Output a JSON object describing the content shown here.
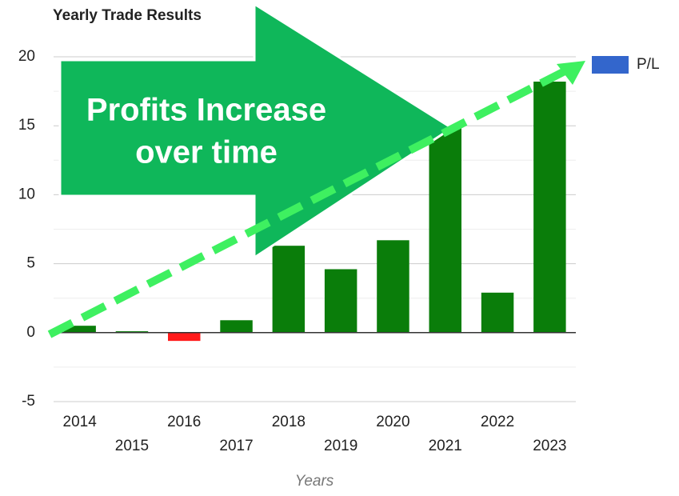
{
  "chart_data": {
    "type": "bar",
    "title": "Yearly Trade Results",
    "x_label": "Years",
    "categories": [
      "2014",
      "2015",
      "2016",
      "2017",
      "2018",
      "2019",
      "2020",
      "2021",
      "2022",
      "2023"
    ],
    "series": [
      {
        "name": "P/L",
        "color": "#3366cc",
        "values": [
          0.5,
          0.1,
          -0.6,
          0.9,
          6.3,
          4.6,
          6.7,
          14.9,
          2.9,
          18.2
        ],
        "bar_colors": [
          "#0a7d0a",
          "#0a7d0a",
          "#ff1a1a",
          "#0a7d0a",
          "#0a7d0a",
          "#0a7d0a",
          "#0a7d0a",
          "#0a7d0a",
          "#0a7d0a",
          "#0a7d0a"
        ]
      }
    ],
    "ylim": [
      -5,
      20
    ],
    "yticks": [
      -5,
      0,
      5,
      10,
      15,
      20
    ],
    "minor_yticks": [
      -2.5,
      2.5,
      7.5,
      12.5,
      17.5
    ],
    "grid": true,
    "legend": "right",
    "annotation": [
      "Profits Increase",
      "over time"
    ]
  }
}
